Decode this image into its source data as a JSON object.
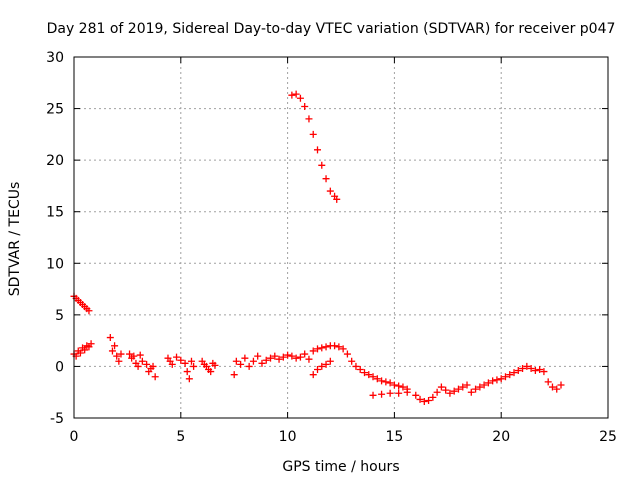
{
  "chart_data": {
    "type": "scatter",
    "title": "Day 281 of 2019, Sidereal Day-to-day VTEC variation (SDTVAR) for receiver p047",
    "xlabel": "GPS time / hours",
    "ylabel": "SDTVAR / TECUs",
    "xlim": [
      0,
      25
    ],
    "ylim": [
      -5,
      30
    ],
    "xticks": [
      0,
      5,
      10,
      15,
      20,
      25
    ],
    "yticks": [
      -5,
      0,
      5,
      10,
      15,
      20,
      25,
      30
    ],
    "grid": true,
    "marker": "plus",
    "series": [
      {
        "name": "SDTVAR",
        "color": "#ff0000",
        "x": [
          0.0,
          0.1,
          0.2,
          0.3,
          0.4,
          0.5,
          0.6,
          0.7,
          0.0,
          0.1,
          0.2,
          0.3,
          0.4,
          0.5,
          0.6,
          0.7,
          0.8,
          1.7,
          1.8,
          1.9,
          2.0,
          2.1,
          2.2,
          2.6,
          2.7,
          2.8,
          2.9,
          3.0,
          3.1,
          3.2,
          3.4,
          3.5,
          3.6,
          3.7,
          3.8,
          4.4,
          4.5,
          4.6,
          4.8,
          5.0,
          5.2,
          5.3,
          5.4,
          5.5,
          5.6,
          6.0,
          6.1,
          6.2,
          6.3,
          6.4,
          6.5,
          6.6,
          7.5,
          7.6,
          7.8,
          8.0,
          8.2,
          8.4,
          8.6,
          8.8,
          9.0,
          9.2,
          9.4,
          9.6,
          9.8,
          10.0,
          10.2,
          10.4,
          10.6,
          10.8,
          11.0,
          11.2,
          11.4,
          11.6,
          11.8,
          12.0,
          12.2,
          12.4,
          12.6,
          12.8,
          13.0,
          11.2,
          11.4,
          11.6,
          11.8,
          12.0,
          13.2,
          13.4,
          13.6,
          13.8,
          14.0,
          14.2,
          14.4,
          14.6,
          14.8,
          15.0,
          15.2,
          15.4,
          15.6,
          14.0,
          14.4,
          14.8,
          15.2,
          15.6,
          16.0,
          16.2,
          16.4,
          16.6,
          16.8,
          17.0,
          17.2,
          17.4,
          17.6,
          17.8,
          18.0,
          18.2,
          18.4,
          18.6,
          18.8,
          19.0,
          19.2,
          19.4,
          19.6,
          19.8,
          20.0,
          20.2,
          20.4,
          20.6,
          20.8,
          21.0,
          21.2,
          21.4,
          21.6,
          21.8,
          22.0,
          22.2,
          22.4,
          22.6,
          22.8,
          10.2,
          10.4,
          10.6,
          10.8,
          11.0,
          11.2,
          11.4,
          11.6,
          11.8,
          12.0,
          12.2,
          12.3
        ],
        "y": [
          6.8,
          6.6,
          6.4,
          6.2,
          6.0,
          5.8,
          5.6,
          5.4,
          1.2,
          1.0,
          1.5,
          1.3,
          1.8,
          1.6,
          2.0,
          1.9,
          2.2,
          2.8,
          1.5,
          2.0,
          1.0,
          0.5,
          1.2,
          1.2,
          0.8,
          1.0,
          0.3,
          0.0,
          1.1,
          0.5,
          0.2,
          -0.5,
          -0.2,
          0.0,
          -1.0,
          0.8,
          0.5,
          0.2,
          0.9,
          0.6,
          0.3,
          -0.5,
          -1.2,
          0.5,
          0.0,
          0.5,
          0.2,
          0.0,
          -0.3,
          -0.5,
          0.3,
          0.1,
          -0.8,
          0.5,
          0.2,
          0.8,
          0.0,
          0.5,
          1.0,
          0.3,
          0.6,
          0.8,
          1.0,
          0.7,
          0.9,
          1.1,
          1.0,
          0.8,
          0.9,
          1.2,
          0.7,
          1.5,
          1.7,
          1.8,
          1.9,
          2.0,
          2.0,
          1.9,
          1.7,
          1.2,
          0.5,
          -0.8,
          -0.3,
          0.0,
          0.2,
          0.5,
          0.0,
          -0.3,
          -0.6,
          -0.8,
          -1.0,
          -1.2,
          -1.4,
          -1.5,
          -1.6,
          -1.8,
          -1.9,
          -2.0,
          -2.2,
          -2.8,
          -2.7,
          -2.6,
          -2.6,
          -2.5,
          -2.8,
          -3.2,
          -3.4,
          -3.3,
          -3.0,
          -2.5,
          -2.0,
          -2.3,
          -2.6,
          -2.4,
          -2.2,
          -2.0,
          -1.8,
          -2.5,
          -2.2,
          -2.0,
          -1.8,
          -1.6,
          -1.4,
          -1.3,
          -1.2,
          -1.0,
          -0.8,
          -0.6,
          -0.4,
          -0.2,
          0.0,
          -0.2,
          -0.4,
          -0.3,
          -0.5,
          -1.5,
          -2.0,
          -2.2,
          -1.8,
          26.3,
          26.4,
          26.0,
          25.2,
          24.0,
          22.5,
          21.0,
          19.5,
          18.2,
          17.0,
          16.5,
          16.2
        ]
      }
    ]
  }
}
